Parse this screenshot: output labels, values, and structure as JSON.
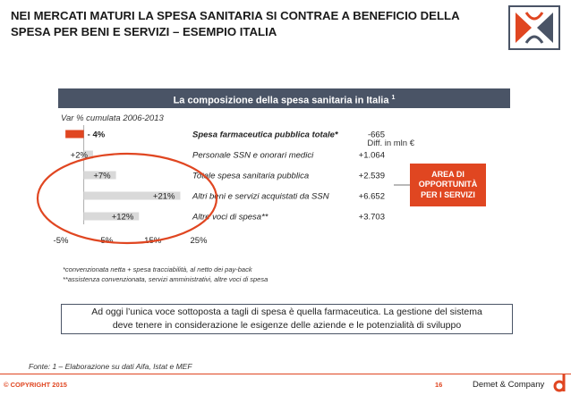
{
  "slide": {
    "title_line1": "NEI MERCATI MATURI LA SPESA SANITARIA SI CONTRAE A BENEFICIO DELLA",
    "title_line2": "SPESA PER BENI E SERVIZI – ESEMPIO ITALIA",
    "section_title": "La composizione della spesa sanitaria in Italia",
    "section_sup": "1",
    "subtitle": "Var % cumulata 2006-2013",
    "diff_header": "Diff. in mln €",
    "callout_line1": "AREA DI",
    "callout_line2": "OPPORTUNITÀ",
    "callout_line3": "PER I SERVIZI",
    "footnote1": "*convenzionata netta + spesa tracciabilità, al netto dei pay-back",
    "footnote2": "**assistenza convenzionata, servizi amministrativi, altre voci di spesa",
    "summary_line1": "Ad oggi l’unica voce sottoposta a tagli di spesa è quella farmaceutica. La gestione del sistema",
    "summary_line2": "deve tenere in considerazione le esigenze delle aziende e le potenzialità di sviluppo",
    "source": "Fonte: 1 – Elaborazione su dati Aifa, Istat e MEF",
    "copyright": "© COPYRIGHT 2015",
    "page_number": "16",
    "company": "Demet & Company"
  },
  "colors": {
    "accent": "#e04621",
    "section_bar": "#4a5466",
    "bar_gray": "#d9d9d9",
    "ellipse": "#e04621"
  },
  "chart_data": {
    "type": "bar",
    "orientation": "horizontal",
    "categories": [
      "Spesa farmaceutica pubblica totale*",
      "Personale SSN e onorari medici",
      "Totale spesa sanitaria pubblica",
      "Altri beni e servizi acquistati da SSN",
      "Altre voci di spesa**"
    ],
    "values": [
      -4,
      2,
      7,
      21,
      12
    ],
    "value_labels": [
      "- 4%",
      "+2%",
      "+7%",
      "+21%",
      "+12%"
    ],
    "diff_mln_eur": [
      "-665",
      "+1.064",
      "+2.539",
      "+6.652",
      "+3.703"
    ],
    "xlim": [
      -5,
      25
    ],
    "xticks": [
      "-5%",
      "5%",
      "15%",
      "25%"
    ],
    "xtick_values": [
      -5,
      5,
      15,
      25
    ],
    "grid": false,
    "highlight_index": 0
  }
}
